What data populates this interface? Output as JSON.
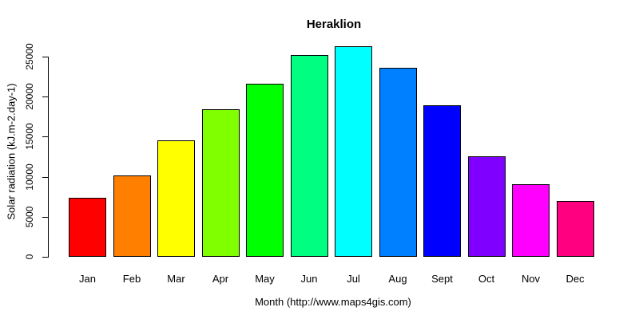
{
  "chart_data": {
    "type": "bar",
    "title": "Heraklion",
    "xlabel": "Month (http://www.maps4gis.com)",
    "ylabel": "Solar radiation (kJ.m-2.day-1)",
    "categories": [
      "Jan",
      "Feb",
      "Mar",
      "Apr",
      "May",
      "Jun",
      "Jul",
      "Aug",
      "Sept",
      "Oct",
      "Nov",
      "Dec"
    ],
    "values": [
      7400,
      10200,
      14500,
      18400,
      21600,
      25200,
      26300,
      23600,
      18900,
      12500,
      9100,
      7000
    ],
    "colors": [
      "#FF0000",
      "#FF8000",
      "#FFFF00",
      "#80FF00",
      "#00FF00",
      "#00FF80",
      "#00FFFF",
      "#0080FF",
      "#0000FF",
      "#8000FF",
      "#FF00FF",
      "#FF0080"
    ],
    "bar_border_color": "#000000",
    "text_color": "#000000",
    "background_color": "#FFFFFF",
    "ylim": [
      0,
      26600
    ],
    "yticks": [
      0,
      5000,
      10000,
      15000,
      20000,
      25000
    ],
    "grid": false,
    "legend": "none"
  }
}
